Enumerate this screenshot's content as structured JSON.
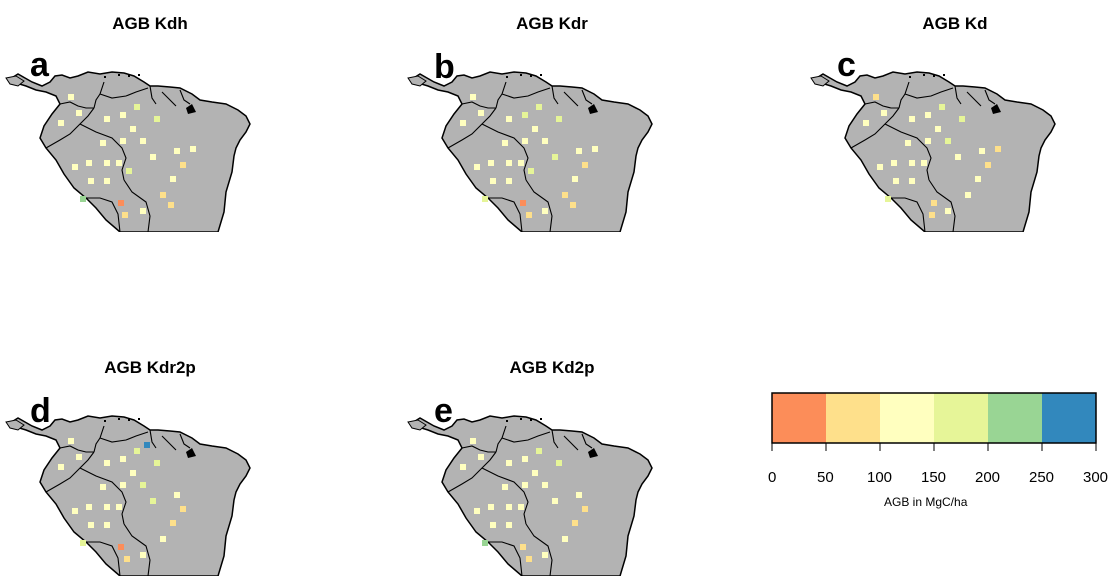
{
  "panels": [
    {
      "title": "AGB Kdh",
      "letter": "a"
    },
    {
      "title": "AGB Kdr",
      "letter": "b"
    },
    {
      "title": "AGB Kd",
      "letter": "c"
    },
    {
      "title": "AGB Kdr2p",
      "letter": "d"
    },
    {
      "title": "AGB Kd2p",
      "letter": "e"
    }
  ],
  "legend": {
    "title": "AGB in MgC/ha",
    "ticks": [
      "0",
      "50",
      "100",
      "150",
      "200",
      "250",
      "300"
    ],
    "colors": [
      "#fc8d59",
      "#fee08b",
      "#ffffbf",
      "#e6f598",
      "#99d594",
      "#3288bd"
    ]
  },
  "colors": {
    "land": "#b3b3b3",
    "border": "#000000"
  }
}
